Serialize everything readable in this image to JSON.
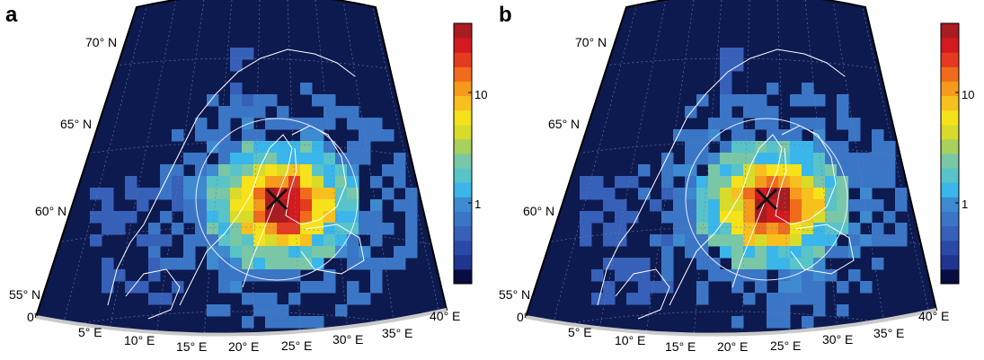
{
  "panels": [
    {
      "letter": "a",
      "lat_labels": [
        "70° N",
        "65° N",
        "60° N",
        "55° N"
      ],
      "lon_labels": [
        "0°",
        "5° E",
        "10° E",
        "15° E",
        "20° E",
        "25° E",
        "30° E",
        "35° E",
        "40° E"
      ],
      "colorbar_ticks": [
        "10",
        "1"
      ]
    },
    {
      "letter": "b",
      "lat_labels": [
        "70° N",
        "65° N",
        "60° N",
        "55° N"
      ],
      "lon_labels": [
        "0°",
        "5° E",
        "10° E",
        "15° E",
        "20° E",
        "25° E",
        "30° E",
        "35° E",
        "40° E"
      ],
      "colorbar_ticks": [
        "10",
        "1"
      ]
    }
  ],
  "colors": {
    "background": "#0d1a4f",
    "coast": "#ffffff",
    "grid": "#6f7aa8",
    "colormap": [
      "#090c3f",
      "#1f3590",
      "#2b4aa8",
      "#3760b8",
      "#3b76c6",
      "#3d8ad0",
      "#3ab6ea",
      "#58c3c9",
      "#79c7a7",
      "#a7d05d",
      "#d8db2a",
      "#f5e21b",
      "#f7c01e",
      "#f59a1d",
      "#ef6c1c",
      "#e43a1f",
      "#d21a1f",
      "#a91c21"
    ],
    "marker": "#111111"
  }
}
